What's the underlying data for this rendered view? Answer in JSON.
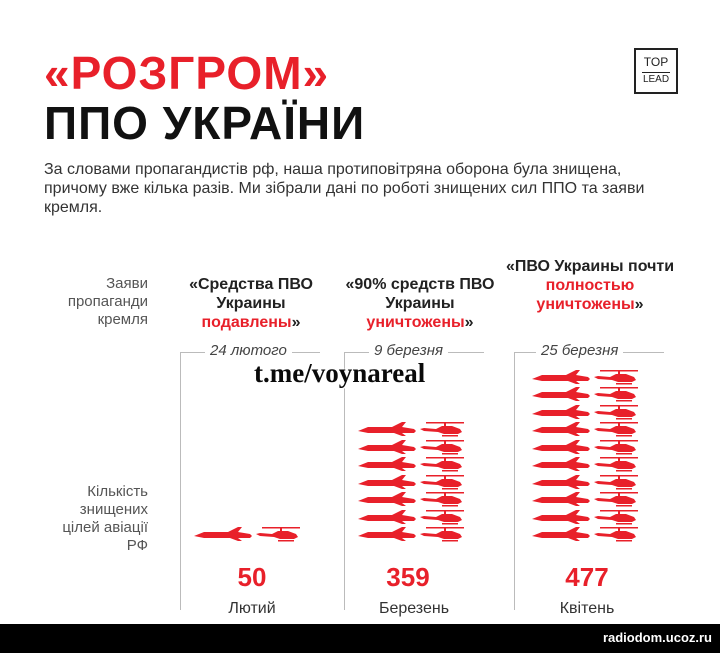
{
  "title": {
    "line1": "«РОЗГРОМ»",
    "line2": "ППО УКРАЇНИ"
  },
  "logo": {
    "top": "TOP",
    "bottom": "LEAD"
  },
  "intro": "За словами пропагандистів рф, наша протиповітряна оборона була знищена, причому вже кілька разів. Ми зібрали дані по роботі знищених сил ППО та заяви кремля.",
  "labels": {
    "claims": "Заяви пропаганди кремля",
    "destroyed": "Кількість знищених цілей авіації РФ"
  },
  "columns": [
    {
      "claim_black": "«Средства ПВО Украины",
      "claim_red": "подавлены",
      "claim_end": "»",
      "date": "24 лютого",
      "count": "50",
      "month": "Лютий",
      "units": 1
    },
    {
      "claim_black": "«90% средств ПВО Украины",
      "claim_red": "уничтожены",
      "claim_end": "»",
      "date": "9 березня",
      "count": "359",
      "month": "Березень",
      "units": 7
    },
    {
      "claim_black": "«ПВО Украины почти",
      "claim_red": "полностью уничтожены",
      "claim_end": "»",
      "date": "25 березня",
      "count": "477",
      "month": "Квітень",
      "units": 10
    }
  ],
  "watermark": "t.me/voynareal",
  "footer": "radiodom.ucoz.ru",
  "colors": {
    "accent": "#e8202a",
    "text": "#111111"
  },
  "icons": {
    "jet": "fighter-jet-icon",
    "heli": "helicopter-icon"
  }
}
